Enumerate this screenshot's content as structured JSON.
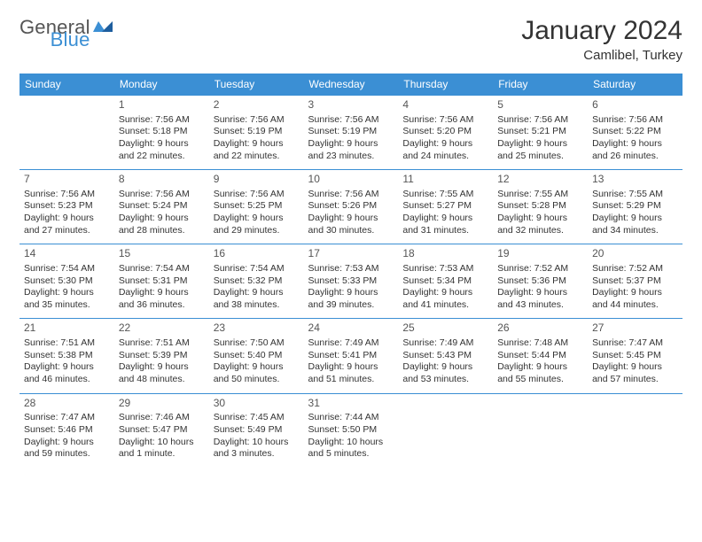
{
  "brand": {
    "word1": "General",
    "word2": "Blue"
  },
  "title": "January 2024",
  "location": "Camlibel, Turkey",
  "colors": {
    "accent": "#3b8fd4",
    "text": "#333333",
    "bg": "#ffffff"
  },
  "weekdays": [
    "Sunday",
    "Monday",
    "Tuesday",
    "Wednesday",
    "Thursday",
    "Friday",
    "Saturday"
  ],
  "days": [
    {
      "n": 1,
      "sr": "7:56 AM",
      "ss": "5:18 PM",
      "dl": "9 hours and 22 minutes."
    },
    {
      "n": 2,
      "sr": "7:56 AM",
      "ss": "5:19 PM",
      "dl": "9 hours and 22 minutes."
    },
    {
      "n": 3,
      "sr": "7:56 AM",
      "ss": "5:19 PM",
      "dl": "9 hours and 23 minutes."
    },
    {
      "n": 4,
      "sr": "7:56 AM",
      "ss": "5:20 PM",
      "dl": "9 hours and 24 minutes."
    },
    {
      "n": 5,
      "sr": "7:56 AM",
      "ss": "5:21 PM",
      "dl": "9 hours and 25 minutes."
    },
    {
      "n": 6,
      "sr": "7:56 AM",
      "ss": "5:22 PM",
      "dl": "9 hours and 26 minutes."
    },
    {
      "n": 7,
      "sr": "7:56 AM",
      "ss": "5:23 PM",
      "dl": "9 hours and 27 minutes."
    },
    {
      "n": 8,
      "sr": "7:56 AM",
      "ss": "5:24 PM",
      "dl": "9 hours and 28 minutes."
    },
    {
      "n": 9,
      "sr": "7:56 AM",
      "ss": "5:25 PM",
      "dl": "9 hours and 29 minutes."
    },
    {
      "n": 10,
      "sr": "7:56 AM",
      "ss": "5:26 PM",
      "dl": "9 hours and 30 minutes."
    },
    {
      "n": 11,
      "sr": "7:55 AM",
      "ss": "5:27 PM",
      "dl": "9 hours and 31 minutes."
    },
    {
      "n": 12,
      "sr": "7:55 AM",
      "ss": "5:28 PM",
      "dl": "9 hours and 32 minutes."
    },
    {
      "n": 13,
      "sr": "7:55 AM",
      "ss": "5:29 PM",
      "dl": "9 hours and 34 minutes."
    },
    {
      "n": 14,
      "sr": "7:54 AM",
      "ss": "5:30 PM",
      "dl": "9 hours and 35 minutes."
    },
    {
      "n": 15,
      "sr": "7:54 AM",
      "ss": "5:31 PM",
      "dl": "9 hours and 36 minutes."
    },
    {
      "n": 16,
      "sr": "7:54 AM",
      "ss": "5:32 PM",
      "dl": "9 hours and 38 minutes."
    },
    {
      "n": 17,
      "sr": "7:53 AM",
      "ss": "5:33 PM",
      "dl": "9 hours and 39 minutes."
    },
    {
      "n": 18,
      "sr": "7:53 AM",
      "ss": "5:34 PM",
      "dl": "9 hours and 41 minutes."
    },
    {
      "n": 19,
      "sr": "7:52 AM",
      "ss": "5:36 PM",
      "dl": "9 hours and 43 minutes."
    },
    {
      "n": 20,
      "sr": "7:52 AM",
      "ss": "5:37 PM",
      "dl": "9 hours and 44 minutes."
    },
    {
      "n": 21,
      "sr": "7:51 AM",
      "ss": "5:38 PM",
      "dl": "9 hours and 46 minutes."
    },
    {
      "n": 22,
      "sr": "7:51 AM",
      "ss": "5:39 PM",
      "dl": "9 hours and 48 minutes."
    },
    {
      "n": 23,
      "sr": "7:50 AM",
      "ss": "5:40 PM",
      "dl": "9 hours and 50 minutes."
    },
    {
      "n": 24,
      "sr": "7:49 AM",
      "ss": "5:41 PM",
      "dl": "9 hours and 51 minutes."
    },
    {
      "n": 25,
      "sr": "7:49 AM",
      "ss": "5:43 PM",
      "dl": "9 hours and 53 minutes."
    },
    {
      "n": 26,
      "sr": "7:48 AM",
      "ss": "5:44 PM",
      "dl": "9 hours and 55 minutes."
    },
    {
      "n": 27,
      "sr": "7:47 AM",
      "ss": "5:45 PM",
      "dl": "9 hours and 57 minutes."
    },
    {
      "n": 28,
      "sr": "7:47 AM",
      "ss": "5:46 PM",
      "dl": "9 hours and 59 minutes."
    },
    {
      "n": 29,
      "sr": "7:46 AM",
      "ss": "5:47 PM",
      "dl": "10 hours and 1 minute."
    },
    {
      "n": 30,
      "sr": "7:45 AM",
      "ss": "5:49 PM",
      "dl": "10 hours and 3 minutes."
    },
    {
      "n": 31,
      "sr": "7:44 AM",
      "ss": "5:50 PM",
      "dl": "10 hours and 5 minutes."
    }
  ],
  "labels": {
    "sunrise": "Sunrise:",
    "sunset": "Sunset:",
    "daylight": "Daylight:"
  },
  "layout": {
    "firstDayOffset": 1,
    "rows": 5,
    "cols": 7
  }
}
